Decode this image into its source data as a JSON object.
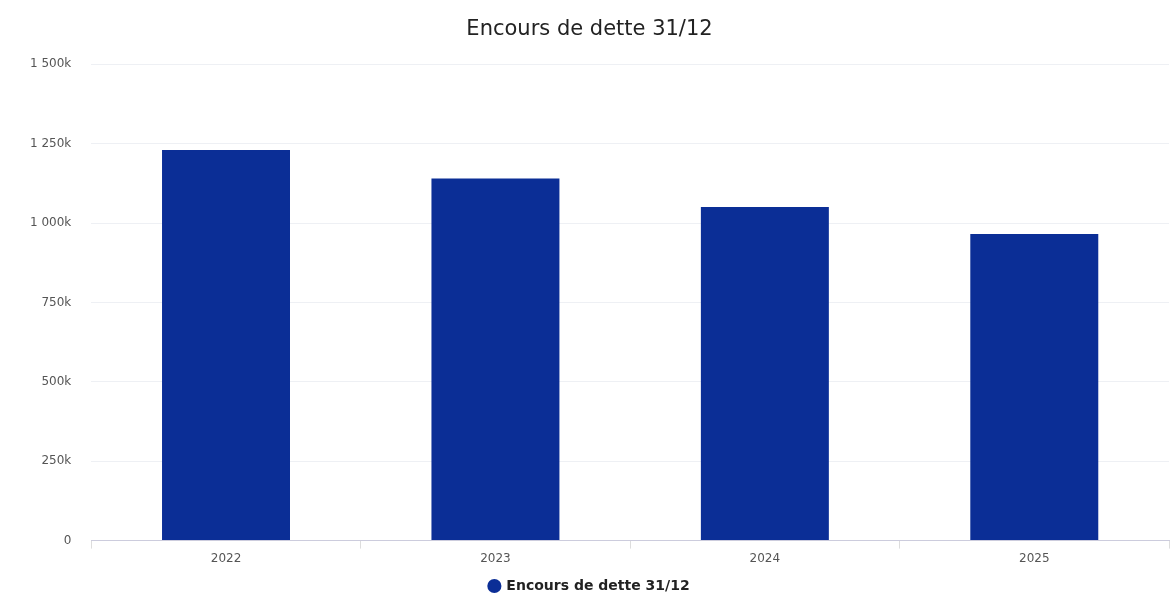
{
  "chart_data": {
    "type": "bar",
    "title": "Encours de dette 31/12",
    "categories": [
      "2022",
      "2023",
      "2024",
      "2025"
    ],
    "series": [
      {
        "name": "Encours de dette 31/12",
        "color": "#0b2e96",
        "values": [
          1230,
          1140,
          1050,
          965
        ]
      }
    ],
    "ylim": [
      0,
      1500
    ],
    "yticks": [
      0,
      {
        "value": 250,
        "label": "250k"
      },
      {
        "value": 500,
        "label": "500k"
      },
      {
        "value": 750,
        "label": "750k"
      },
      {
        "value": 1000,
        "label": "1 000k"
      },
      {
        "value": 1250,
        "label": "1 250k"
      },
      {
        "value": 1500,
        "label": "1 500k"
      }
    ],
    "grid": "y",
    "legend": "bottom",
    "marker": "circle"
  }
}
